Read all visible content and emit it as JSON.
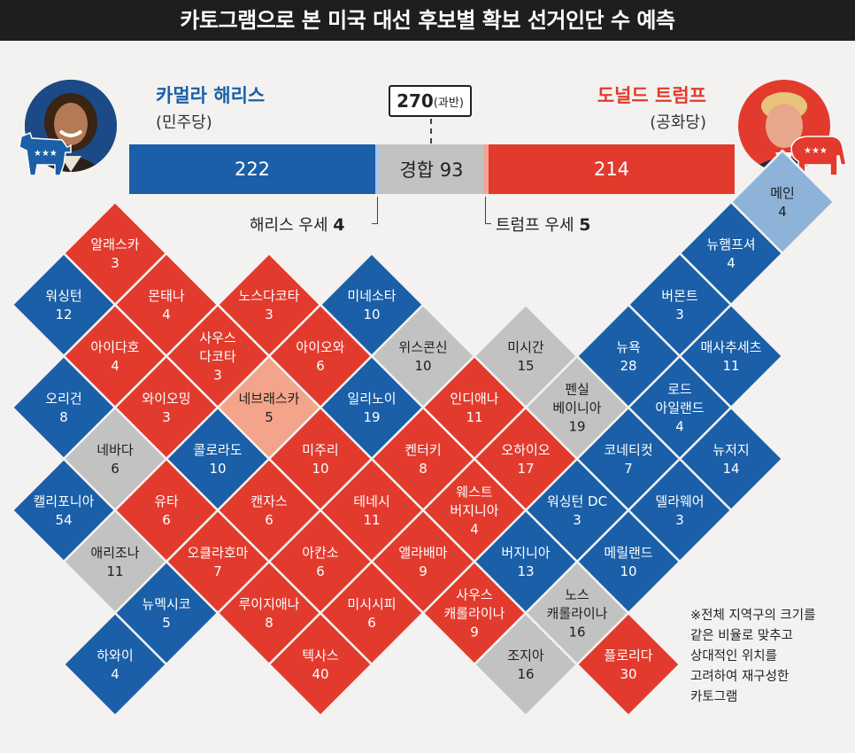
{
  "header": {
    "title": "카토그램으로 본 미국 대선 후보별 확보 선거인단 수 예측"
  },
  "harris": {
    "name": "카멀라 해리스",
    "party": "(민주당)",
    "electoral": "222",
    "lean_label": "해리스 우세",
    "lean_value": "4"
  },
  "trump": {
    "name": "도널드 트럼프",
    "party": "(공화당)",
    "electoral": "214",
    "lean_label": "트럼프 우세",
    "lean_value": "5"
  },
  "tossup": {
    "label": "경합 93"
  },
  "majority": {
    "value": "270",
    "label": "(과반)"
  },
  "colors": {
    "dem": "#1a5fa8",
    "rep": "#e23b2e",
    "tossup": "#c2c2c2",
    "lean_dem": "#8db3d8",
    "lean_rep": "#f4a48a",
    "bar_lean_dem": "#a8c4e3",
    "bar_lean_rep": "#f5a594"
  },
  "states": [
    {
      "name": "알래스카",
      "ev": "3",
      "cat": "rep",
      "gx": 0,
      "gy": 0
    },
    {
      "name": "워싱턴",
      "ev": "12",
      "cat": "dem",
      "gx": -1,
      "gy": 1
    },
    {
      "name": "몬태나",
      "ev": "4",
      "cat": "rep",
      "gx": 1,
      "gy": 1
    },
    {
      "name": "노스다코타",
      "ev": "3",
      "cat": "rep",
      "gx": 3,
      "gy": 1
    },
    {
      "name": "미네소타",
      "ev": "10",
      "cat": "dem",
      "gx": 5,
      "gy": 1
    },
    {
      "name": "아이다호",
      "ev": "4",
      "cat": "rep",
      "gx": 0,
      "gy": 2
    },
    {
      "name": "사우스\n다코타",
      "ev": "3",
      "cat": "rep",
      "gx": 2,
      "gy": 2
    },
    {
      "name": "아이오와",
      "ev": "6",
      "cat": "rep",
      "gx": 4,
      "gy": 2
    },
    {
      "name": "위스콘신",
      "ev": "10",
      "cat": "tossup",
      "gx": 6,
      "gy": 2
    },
    {
      "name": "미시간",
      "ev": "15",
      "cat": "tossup",
      "gx": 8,
      "gy": 2
    },
    {
      "name": "오리건",
      "ev": "8",
      "cat": "dem",
      "gx": -1,
      "gy": 3
    },
    {
      "name": "와이오밍",
      "ev": "3",
      "cat": "rep",
      "gx": 1,
      "gy": 3
    },
    {
      "name": "네브래스카",
      "ev": "5",
      "cat": "lean_rep",
      "gx": 3,
      "gy": 3
    },
    {
      "name": "일리노이",
      "ev": "19",
      "cat": "dem",
      "gx": 5,
      "gy": 3
    },
    {
      "name": "인디애나",
      "ev": "11",
      "cat": "rep",
      "gx": 7,
      "gy": 3
    },
    {
      "name": "펜실\n베이니아",
      "ev": "19",
      "cat": "tossup",
      "gx": 9,
      "gy": 3
    },
    {
      "name": "네바다",
      "ev": "6",
      "cat": "tossup",
      "gx": 0,
      "gy": 4
    },
    {
      "name": "콜로라도",
      "ev": "10",
      "cat": "dem",
      "gx": 2,
      "gy": 4
    },
    {
      "name": "미주리",
      "ev": "10",
      "cat": "rep",
      "gx": 4,
      "gy": 4
    },
    {
      "name": "켄터키",
      "ev": "8",
      "cat": "rep",
      "gx": 6,
      "gy": 4
    },
    {
      "name": "오하이오",
      "ev": "17",
      "cat": "rep",
      "gx": 8,
      "gy": 4
    },
    {
      "name": "캘리포니아",
      "ev": "54",
      "cat": "dem",
      "gx": -1,
      "gy": 5
    },
    {
      "name": "유타",
      "ev": "6",
      "cat": "rep",
      "gx": 1,
      "gy": 5
    },
    {
      "name": "캔자스",
      "ev": "6",
      "cat": "rep",
      "gx": 3,
      "gy": 5
    },
    {
      "name": "테네시",
      "ev": "11",
      "cat": "rep",
      "gx": 5,
      "gy": 5
    },
    {
      "name": "웨스트\n버지니아",
      "ev": "4",
      "cat": "rep",
      "gx": 7,
      "gy": 5
    },
    {
      "name": "애리조나",
      "ev": "11",
      "cat": "tossup",
      "gx": 0,
      "gy": 6
    },
    {
      "name": "오클라호마",
      "ev": "7",
      "cat": "rep",
      "gx": 2,
      "gy": 6
    },
    {
      "name": "아칸소",
      "ev": "6",
      "cat": "rep",
      "gx": 4,
      "gy": 6
    },
    {
      "name": "앨라배마",
      "ev": "9",
      "cat": "rep",
      "gx": 6,
      "gy": 6
    },
    {
      "name": "뉴멕시코",
      "ev": "5",
      "cat": "dem",
      "gx": 1,
      "gy": 7
    },
    {
      "name": "루이지애나",
      "ev": "8",
      "cat": "rep",
      "gx": 3,
      "gy": 7
    },
    {
      "name": "미시시피",
      "ev": "6",
      "cat": "rep",
      "gx": 5,
      "gy": 7
    },
    {
      "name": "사우스\n캐롤라이나",
      "ev": "9",
      "cat": "rep",
      "gx": 7,
      "gy": 7
    },
    {
      "name": "하와이",
      "ev": "4",
      "cat": "dem",
      "gx": 0,
      "gy": 8
    },
    {
      "name": "텍사스",
      "ev": "40",
      "cat": "rep",
      "gx": 4,
      "gy": 8
    },
    {
      "name": "조지아",
      "ev": "16",
      "cat": "tossup",
      "gx": 8,
      "gy": 8
    },
    {
      "name": "메인",
      "ev": "4",
      "cat": "lean_dem",
      "gx": 13,
      "gy": -1
    },
    {
      "name": "뉴햄프셔",
      "ev": "4",
      "cat": "dem",
      "gx": 12,
      "gy": 0
    },
    {
      "name": "버몬트",
      "ev": "3",
      "cat": "dem",
      "gx": 11,
      "gy": 1
    },
    {
      "name": "뉴욕",
      "ev": "28",
      "cat": "dem",
      "gx": 10,
      "gy": 2
    },
    {
      "name": "매사추세츠",
      "ev": "11",
      "cat": "dem",
      "gx": 12,
      "gy": 2
    },
    {
      "name": "로드\n아일랜드",
      "ev": "4",
      "cat": "dem",
      "gx": 11,
      "gy": 3
    },
    {
      "name": "코네티컷",
      "ev": "7",
      "cat": "dem",
      "gx": 10,
      "gy": 4
    },
    {
      "name": "뉴저지",
      "ev": "14",
      "cat": "dem",
      "gx": 12,
      "gy": 4
    },
    {
      "name": "워싱턴 DC",
      "ev": "3",
      "cat": "dem",
      "gx": 9,
      "gy": 5
    },
    {
      "name": "델라웨어",
      "ev": "3",
      "cat": "dem",
      "gx": 11,
      "gy": 5
    },
    {
      "name": "버지니아",
      "ev": "13",
      "cat": "dem",
      "gx": 8,
      "gy": 6
    },
    {
      "name": "메릴랜드",
      "ev": "10",
      "cat": "dem",
      "gx": 10,
      "gy": 6
    },
    {
      "name": "노스\n캐롤라이나",
      "ev": "16",
      "cat": "tossup",
      "gx": 9,
      "gy": 7
    },
    {
      "name": "플로리다",
      "ev": "30",
      "cat": "rep",
      "gx": 10,
      "gy": 8
    }
  ],
  "note": [
    "※전체 지역구의 크기를",
    "같은 비율로 맞추고",
    "상대적인 위치를",
    "고려하여 재구성한",
    "카토그램"
  ]
}
